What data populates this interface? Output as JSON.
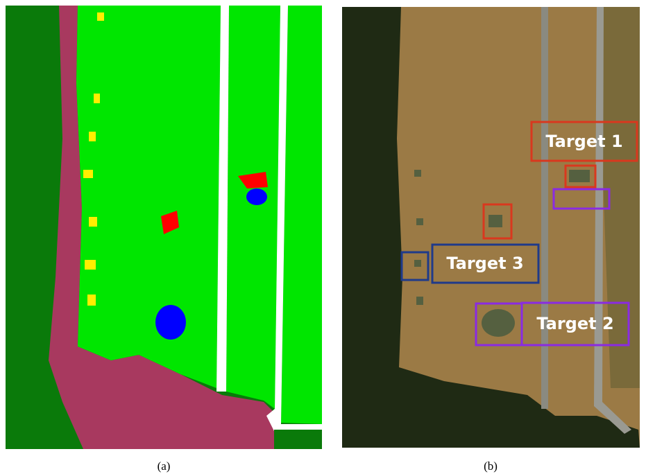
{
  "panels": [
    {
      "label": "(a)"
    },
    {
      "label": "(b)",
      "annotations": [
        {
          "text": "Target 1"
        },
        {
          "text": "Target 3"
        },
        {
          "text": "Target 2"
        }
      ]
    }
  ]
}
